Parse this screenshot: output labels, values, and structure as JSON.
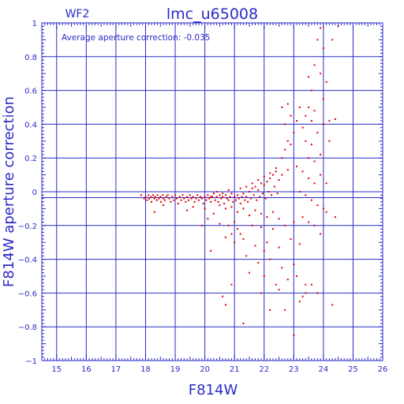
{
  "chart_data": {
    "type": "scatter",
    "title": "lmc_u65008",
    "subtitle": "WF2",
    "annotation": "Average aperture correction: -0.035",
    "xlabel": "F814W",
    "ylabel": "F814W aperture correction",
    "xlim": [
      14.5,
      26
    ],
    "ylim": [
      -1,
      1
    ],
    "x_ticks": [
      15,
      16,
      17,
      18,
      19,
      20,
      21,
      22,
      23,
      24,
      25,
      26
    ],
    "y_ticks": [
      -1,
      -0.8,
      -0.6,
      -0.4,
      -0.2,
      0,
      0.2,
      0.4,
      0.6,
      0.8,
      1
    ],
    "x_tick_labels": [
      "15",
      "16",
      "17",
      "18",
      "19",
      "20",
      "21",
      "22",
      "23",
      "24",
      "25",
      "26"
    ],
    "y_tick_labels": [
      "−1",
      "−0.8",
      "−0.6",
      "−0.4",
      "−0.2",
      "0",
      "0.2",
      "0.4",
      "0.6",
      "0.8",
      "1"
    ],
    "reference_lines": [
      0,
      -0.035
    ],
    "grid": true,
    "colors": {
      "axes": "#2b2bc8",
      "points": "#e00000"
    },
    "points": [
      [
        17.85,
        -0.02
      ],
      [
        17.95,
        -0.04
      ],
      [
        18.0,
        -0.03
      ],
      [
        18.05,
        -0.05
      ],
      [
        18.1,
        -0.02
      ],
      [
        18.12,
        -0.04
      ],
      [
        18.18,
        -0.03
      ],
      [
        18.2,
        -0.06
      ],
      [
        18.25,
        -0.02
      ],
      [
        18.3,
        -0.04
      ],
      [
        18.32,
        -0.03
      ],
      [
        18.38,
        -0.05
      ],
      [
        18.4,
        -0.02
      ],
      [
        18.45,
        -0.04
      ],
      [
        18.5,
        -0.03
      ],
      [
        18.52,
        -0.06
      ],
      [
        18.58,
        -0.02
      ],
      [
        18.6,
        -0.04
      ],
      [
        18.65,
        -0.05
      ],
      [
        18.7,
        -0.03
      ],
      [
        18.75,
        -0.02
      ],
      [
        18.8,
        -0.04
      ],
      [
        18.85,
        -0.06
      ],
      [
        18.9,
        -0.03
      ],
      [
        18.95,
        -0.05
      ],
      [
        19.0,
        -0.02
      ],
      [
        19.05,
        -0.04
      ],
      [
        19.1,
        -0.07
      ],
      [
        19.15,
        -0.03
      ],
      [
        19.2,
        -0.05
      ],
      [
        19.25,
        -0.02
      ],
      [
        19.3,
        -0.04
      ],
      [
        19.35,
        -0.06
      ],
      [
        19.4,
        -0.03
      ],
      [
        19.45,
        -0.05
      ],
      [
        19.5,
        -0.02
      ],
      [
        19.55,
        -0.04
      ],
      [
        19.6,
        -0.03
      ],
      [
        19.65,
        -0.06
      ],
      [
        19.7,
        -0.04
      ],
      [
        19.75,
        -0.02
      ],
      [
        19.8,
        -0.05
      ],
      [
        19.85,
        -0.03
      ],
      [
        19.9,
        -0.04
      ],
      [
        19.95,
        -0.07
      ],
      [
        20.0,
        -0.03
      ],
      [
        20.05,
        -0.05
      ],
      [
        20.1,
        -0.02
      ],
      [
        20.15,
        -0.04
      ],
      [
        20.2,
        -0.06
      ],
      [
        20.25,
        -0.03
      ],
      [
        20.3,
        -0.01
      ],
      [
        20.35,
        -0.05
      ],
      [
        20.4,
        -0.03
      ],
      [
        20.45,
        -0.06
      ],
      [
        20.5,
        -0.02
      ],
      [
        20.55,
        -0.04
      ],
      [
        20.6,
        -0.03
      ],
      [
        20.65,
        -0.07
      ],
      [
        20.7,
        -0.02
      ],
      [
        20.75,
        -0.04
      ],
      [
        20.8,
        -0.05
      ],
      [
        20.85,
        -0.03
      ],
      [
        20.9,
        -0.01
      ],
      [
        20.95,
        -0.06
      ],
      [
        21.0,
        -0.03
      ],
      [
        21.05,
        -0.05
      ],
      [
        21.1,
        -0.02
      ],
      [
        21.15,
        -0.04
      ],
      [
        21.2,
        -0.07
      ],
      [
        21.25,
        -0.03
      ],
      [
        21.3,
        -0.01
      ],
      [
        21.35,
        -0.05
      ],
      [
        21.4,
        -0.03
      ],
      [
        21.45,
        -0.06
      ],
      [
        21.5,
        0.0
      ],
      [
        21.55,
        -0.04
      ],
      [
        21.6,
        0.02
      ],
      [
        21.65,
        -0.02
      ],
      [
        21.7,
        0.03
      ],
      [
        21.75,
        -0.05
      ],
      [
        21.8,
        0.01
      ],
      [
        21.85,
        -0.03
      ],
      [
        21.9,
        0.05
      ],
      [
        21.95,
        -0.01
      ],
      [
        22.0,
        0.04
      ],
      [
        22.05,
        -0.04
      ],
      [
        22.1,
        0.06
      ],
      [
        22.15,
        0.0
      ],
      [
        22.2,
        0.08
      ],
      [
        22.25,
        -0.02
      ],
      [
        22.3,
        0.1
      ],
      [
        22.35,
        0.03
      ],
      [
        22.4,
        0.12
      ],
      [
        22.45,
        -0.01
      ],
      [
        22.5,
        0.07
      ],
      [
        20.2,
        -0.03
      ],
      [
        20.4,
        0.0
      ],
      [
        20.6,
        -0.01
      ],
      [
        20.8,
        0.01
      ],
      [
        20.5,
        -0.08
      ],
      [
        20.7,
        -0.1
      ],
      [
        20.9,
        -0.09
      ],
      [
        21.1,
        -0.12
      ],
      [
        21.3,
        -0.1
      ],
      [
        21.5,
        -0.14
      ],
      [
        21.7,
        -0.11
      ],
      [
        21.9,
        -0.13
      ],
      [
        22.1,
        -0.15
      ],
      [
        22.3,
        -0.12
      ],
      [
        22.5,
        -0.16
      ],
      [
        21.2,
        0.02
      ],
      [
        21.4,
        0.03
      ],
      [
        21.6,
        0.05
      ],
      [
        21.8,
        0.07
      ],
      [
        22.0,
        0.09
      ],
      [
        22.2,
        0.11
      ],
      [
        22.4,
        0.14
      ],
      [
        22.6,
        0.1
      ],
      [
        22.8,
        0.13
      ],
      [
        19.4,
        -0.11
      ],
      [
        19.6,
        -0.09
      ],
      [
        20.0,
        -0.1
      ],
      [
        20.3,
        -0.13
      ],
      [
        18.3,
        -0.12
      ],
      [
        18.6,
        -0.08
      ],
      [
        19.9,
        -0.2
      ],
      [
        20.1,
        -0.16
      ],
      [
        20.5,
        -0.19
      ],
      [
        20.8,
        -0.2
      ],
      [
        21.1,
        -0.22
      ],
      [
        21.6,
        -0.2
      ],
      [
        21.9,
        -0.21
      ],
      [
        22.3,
        -0.22
      ],
      [
        22.7,
        -0.2
      ],
      [
        23.0,
        -0.18
      ],
      [
        21.0,
        -0.3
      ],
      [
        21.3,
        -0.28
      ],
      [
        21.7,
        -0.32
      ],
      [
        22.1,
        -0.3
      ],
      [
        22.5,
        -0.33
      ],
      [
        22.9,
        -0.28
      ],
      [
        23.2,
        -0.31
      ],
      [
        20.9,
        -0.25
      ],
      [
        21.4,
        -0.38
      ],
      [
        21.8,
        -0.42
      ],
      [
        22.2,
        -0.4
      ],
      [
        22.6,
        -0.45
      ],
      [
        23.0,
        -0.43
      ],
      [
        22.0,
        -0.5
      ],
      [
        22.4,
        -0.55
      ],
      [
        22.8,
        -0.52
      ],
      [
        23.1,
        -0.5
      ],
      [
        23.4,
        -0.55
      ],
      [
        21.5,
        -0.48
      ],
      [
        20.2,
        -0.35
      ],
      [
        20.7,
        -0.27
      ],
      [
        21.0,
        -0.18
      ],
      [
        21.2,
        -0.25
      ],
      [
        22.0,
        -0.35
      ],
      [
        22.6,
        0.2
      ],
      [
        22.7,
        0.25
      ],
      [
        22.8,
        0.3
      ],
      [
        22.9,
        0.28
      ],
      [
        23.0,
        0.35
      ],
      [
        22.7,
        0.4
      ],
      [
        22.9,
        0.45
      ],
      [
        23.1,
        0.42
      ],
      [
        23.2,
        0.5
      ],
      [
        22.6,
        0.5
      ],
      [
        22.8,
        0.52
      ],
      [
        23.3,
        0.38
      ],
      [
        23.4,
        0.45
      ],
      [
        23.5,
        0.5
      ],
      [
        23.6,
        0.42
      ],
      [
        23.7,
        0.48
      ],
      [
        23.4,
        0.3
      ],
      [
        23.6,
        0.28
      ],
      [
        23.8,
        0.35
      ],
      [
        24.0,
        0.4
      ],
      [
        24.2,
        0.42
      ],
      [
        23.5,
        0.2
      ],
      [
        23.7,
        0.18
      ],
      [
        23.9,
        0.22
      ],
      [
        23.1,
        0.15
      ],
      [
        23.3,
        0.12
      ],
      [
        23.5,
        0.08
      ],
      [
        23.7,
        0.05
      ],
      [
        23.9,
        0.1
      ],
      [
        24.1,
        0.05
      ],
      [
        23.2,
        0.0
      ],
      [
        23.4,
        -0.02
      ],
      [
        23.6,
        -0.05
      ],
      [
        23.8,
        -0.08
      ],
      [
        24.0,
        -0.1
      ],
      [
        23.3,
        -0.15
      ],
      [
        23.5,
        -0.18
      ],
      [
        23.7,
        -0.2
      ],
      [
        23.9,
        -0.25
      ],
      [
        24.1,
        -0.12
      ],
      [
        24.4,
        -0.15
      ],
      [
        23.4,
        -0.6
      ],
      [
        23.6,
        -0.55
      ],
      [
        23.2,
        -0.65
      ],
      [
        23.8,
        -0.6
      ],
      [
        22.7,
        -0.7
      ],
      [
        23.0,
        -0.85
      ],
      [
        23.3,
        -0.62
      ],
      [
        23.6,
        0.6
      ],
      [
        23.9,
        0.7
      ],
      [
        23.5,
        0.68
      ],
      [
        23.7,
        0.75
      ],
      [
        23.8,
        0.9
      ],
      [
        24.0,
        0.85
      ],
      [
        23.9,
        0.97
      ],
      [
        24.1,
        0.65
      ],
      [
        24.3,
        0.9
      ],
      [
        24.5,
        0.98
      ],
      [
        24.0,
        0.55
      ],
      [
        24.2,
        0.3
      ],
      [
        24.4,
        0.43
      ],
      [
        24.3,
        -0.67
      ],
      [
        21.3,
        -0.78
      ],
      [
        20.7,
        -0.67
      ],
      [
        20.9,
        -0.55
      ],
      [
        20.6,
        -0.62
      ],
      [
        22.2,
        -0.7
      ],
      [
        21.9,
        -0.6
      ],
      [
        22.5,
        -0.58
      ]
    ]
  }
}
